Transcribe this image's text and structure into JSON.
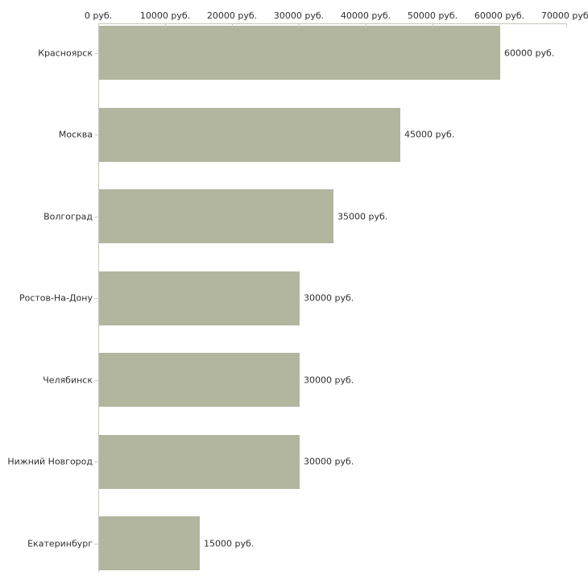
{
  "chart_data": {
    "type": "bar",
    "orientation": "horizontal",
    "title": "",
    "categories": [
      "Красноярск",
      "Москва",
      "Волгоград",
      "Ростов-На-Дону",
      "Челябинск",
      "Нижний Новгород",
      "Екатеринбург"
    ],
    "values": [
      60000,
      45000,
      35000,
      30000,
      30000,
      30000,
      15000
    ],
    "value_labels": [
      "60000 руб.",
      "45000 руб.",
      "35000 руб.",
      "30000 руб.",
      "30000 руб.",
      "30000 руб.",
      "15000 руб."
    ],
    "x_axis": {
      "position": "top",
      "range": [
        0,
        70000
      ],
      "ticks": [
        0,
        10000,
        20000,
        30000,
        40000,
        50000,
        60000,
        70000
      ],
      "tick_labels": [
        "0 руб.",
        "10000 руб.",
        "20000 руб.",
        "30000 руб.",
        "40000 руб.",
        "50000 руб.",
        "60000 руб.",
        "70000 руб."
      ]
    },
    "grid": false,
    "legend": false,
    "colors": {
      "bar": "#b2b69f",
      "axis_line": "#c6c9ba",
      "tick": "#ccd0bf",
      "text": "#2e2e2e",
      "background": "#ffffff"
    }
  }
}
